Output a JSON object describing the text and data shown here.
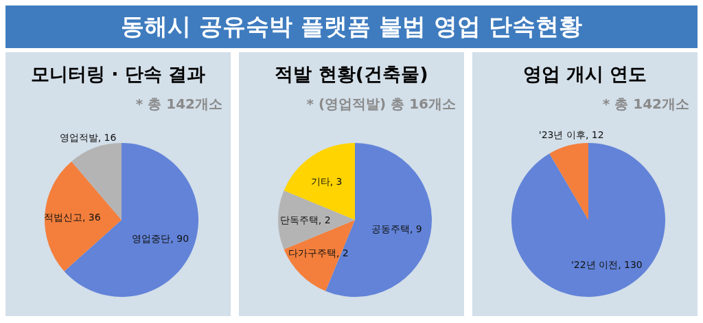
{
  "chart_data": [
    {
      "type": "pie",
      "title": "모니터링 · 단속 결과",
      "subtitle": "* 총 142개소",
      "annotations": [
        "동해시 공유숙박 플랫폼 불법 영업 단속현황"
      ],
      "categories": [
        "영업중단",
        "적법신고",
        "영업적발"
      ],
      "values": [
        90,
        36,
        16
      ],
      "value_labels": [
        ", 90",
        ", 36",
        ", 16"
      ],
      "colors": [
        "#6283d8",
        "#f47f3c",
        "#b4b4b4"
      ],
      "legend": false
    },
    {
      "type": "pie",
      "title": "적발 현황(건축물)",
      "subtitle": "* (영업적발) 총 16개소",
      "categories": [
        "공동주택",
        "다가구주택",
        "단독주택",
        "기타"
      ],
      "values": [
        9,
        2,
        2,
        3
      ],
      "value_labels": [
        ", 9",
        ", 2",
        ", 2",
        ", 3"
      ],
      "colors": [
        "#6283d8",
        "#f47f3c",
        "#b4b4b4",
        "#ffd400"
      ],
      "legend": false
    },
    {
      "type": "pie",
      "title": "영업 개시 연도",
      "subtitle": "* 총 142개소",
      "categories": [
        "'22년 이전",
        "'23년 이후"
      ],
      "values": [
        130,
        12
      ],
      "value_labels": [
        ", 130",
        ", 12"
      ],
      "colors": [
        "#6283d8",
        "#f47f3c"
      ],
      "legend": false
    }
  ]
}
